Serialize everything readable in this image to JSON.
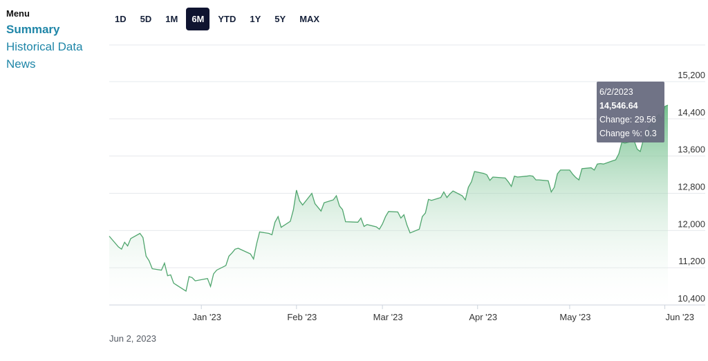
{
  "menu": {
    "heading": "Menu",
    "items": [
      {
        "label": "Summary",
        "active": true
      },
      {
        "label": "Historical Data",
        "active": false
      },
      {
        "label": "News",
        "active": false
      }
    ]
  },
  "ranges": {
    "buttons": [
      "1D",
      "5D",
      "1M",
      "6M",
      "YTD",
      "1Y",
      "5Y",
      "MAX"
    ],
    "selected": "6M"
  },
  "footer_date": "Jun 2, 2023",
  "tooltip": {
    "date": "6/2/2023",
    "value": "14,546.64",
    "change": "Change: 29.56",
    "change_pct": "Change %: 0.3"
  },
  "colors": {
    "line": "#4fa56d",
    "fill_top": "#5cb57a",
    "fill_bottom": "#ffffff",
    "grid": "#e6e8ec",
    "tooltip_bg": "#686b80"
  },
  "chart_data": {
    "type": "area",
    "x": [
      "2022-12-02",
      "2022-12-05",
      "2022-12-06",
      "2022-12-07",
      "2022-12-08",
      "2022-12-09",
      "2022-12-12",
      "2022-12-13",
      "2022-12-14",
      "2022-12-15",
      "2022-12-16",
      "2022-12-19",
      "2022-12-20",
      "2022-12-21",
      "2022-12-22",
      "2022-12-23",
      "2022-12-27",
      "2022-12-28",
      "2022-12-29",
      "2022-12-30",
      "2023-01-03",
      "2023-01-04",
      "2023-01-05",
      "2023-01-06",
      "2023-01-09",
      "2023-01-10",
      "2023-01-11",
      "2023-01-12",
      "2023-01-13",
      "2023-01-17",
      "2023-01-18",
      "2023-01-19",
      "2023-01-20",
      "2023-01-23",
      "2023-01-24",
      "2023-01-25",
      "2023-01-26",
      "2023-01-27",
      "2023-01-30",
      "2023-01-31",
      "2023-02-01",
      "2023-02-02",
      "2023-02-03",
      "2023-02-06",
      "2023-02-07",
      "2023-02-08",
      "2023-02-09",
      "2023-02-10",
      "2023-02-13",
      "2023-02-14",
      "2023-02-15",
      "2023-02-16",
      "2023-02-17",
      "2023-02-21",
      "2023-02-22",
      "2023-02-23",
      "2023-02-24",
      "2023-02-27",
      "2023-02-28",
      "2023-03-01",
      "2023-03-02",
      "2023-03-03",
      "2023-03-06",
      "2023-03-07",
      "2023-03-08",
      "2023-03-09",
      "2023-03-10",
      "2023-03-13",
      "2023-03-14",
      "2023-03-15",
      "2023-03-16",
      "2023-03-17",
      "2023-03-20",
      "2023-03-21",
      "2023-03-22",
      "2023-03-23",
      "2023-03-24",
      "2023-03-27",
      "2023-03-28",
      "2023-03-29",
      "2023-03-30",
      "2023-03-31",
      "2023-04-03",
      "2023-04-04",
      "2023-04-05",
      "2023-04-06",
      "2023-04-10",
      "2023-04-11",
      "2023-04-12",
      "2023-04-13",
      "2023-04-14",
      "2023-04-17",
      "2023-04-18",
      "2023-04-19",
      "2023-04-20",
      "2023-04-21",
      "2023-04-24",
      "2023-04-25",
      "2023-04-26",
      "2023-04-27",
      "2023-04-28",
      "2023-05-01",
      "2023-05-02",
      "2023-05-03",
      "2023-05-04",
      "2023-05-05",
      "2023-05-08",
      "2023-05-09",
      "2023-05-10",
      "2023-05-11",
      "2023-05-12",
      "2023-05-15",
      "2023-05-16",
      "2023-05-17",
      "2023-05-18",
      "2023-05-19",
      "2023-05-22",
      "2023-05-23",
      "2023-05-24",
      "2023-05-25",
      "2023-05-26",
      "2023-05-30",
      "2023-05-31",
      "2023-06-01",
      "2023-06-02"
    ],
    "values": [
      11730,
      11500,
      11450,
      11600,
      11520,
      11680,
      11790,
      11700,
      11300,
      11200,
      11030,
      11000,
      11150,
      10880,
      10900,
      10720,
      10550,
      10860,
      10840,
      10770,
      10820,
      10650,
      10920,
      11000,
      11100,
      11300,
      11370,
      11450,
      11470,
      11350,
      11240,
      11560,
      11820,
      11790,
      11760,
      12030,
      12150,
      11920,
      12050,
      12300,
      12720,
      12490,
      12400,
      12650,
      12430,
      12350,
      12270,
      12450,
      12510,
      12600,
      12380,
      12300,
      12040,
      12030,
      12120,
      11940,
      11980,
      11930,
      11880,
      11990,
      12150,
      12260,
      12250,
      12120,
      12190,
      11970,
      11800,
      11880,
      12150,
      12230,
      12520,
      12500,
      12560,
      12680,
      12560,
      12640,
      12700,
      12600,
      12510,
      12780,
      12900,
      13120,
      13080,
      13050,
      12930,
      13000,
      12980,
      12900,
      12800,
      13020,
      13000,
      13020,
      13030,
      13020,
      12940,
      12940,
      12920,
      12680,
      12780,
      13070,
      13150,
      13150,
      13060,
      12990,
      12940,
      13180,
      13200,
      13150,
      13280,
      13290,
      13280,
      13350,
      13370,
      13500,
      13750,
      13730,
      13780,
      13600,
      13550,
      13800,
      14000,
      14350,
      14250,
      14520,
      14546.64
    ],
    "xlim": [
      "2022-12-02",
      "2023-06-02"
    ],
    "ylim": [
      10400,
      15200
    ],
    "ytick_values": [
      10400,
      11200,
      12000,
      12800,
      13600,
      14400,
      15200
    ],
    "ytick_labels": [
      "10,400",
      "11,200",
      "12,000",
      "12,800",
      "13,600",
      "14,400",
      "15,200"
    ],
    "xtick_values": [
      "2023-01-01",
      "2023-02-01",
      "2023-03-01",
      "2023-04-01",
      "2023-05-01",
      "2023-06-01"
    ],
    "xtick_labels": [
      "Jan '23",
      "Feb '23",
      "Mar '23",
      "Apr '23",
      "May '23",
      "Jun '23"
    ],
    "grid": "horizontal",
    "title": "",
    "xlabel": "",
    "ylabel": ""
  }
}
